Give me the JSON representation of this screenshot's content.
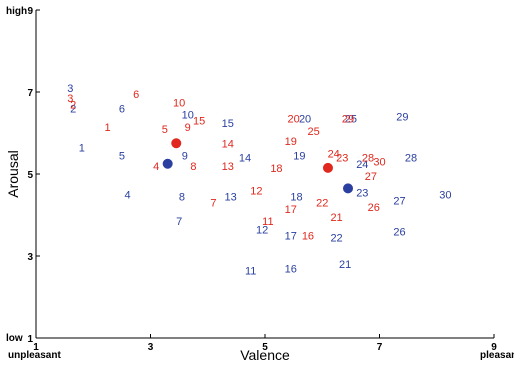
{
  "chart_data": {
    "type": "scatter",
    "xlabel": "Valence",
    "ylabel": "Arousal",
    "xlim": [
      1,
      9
    ],
    "ylim": [
      1,
      9
    ],
    "x_ticks": [
      1,
      3,
      5,
      7,
      9
    ],
    "y_ticks": [
      1,
      3,
      5,
      7,
      9
    ],
    "x_end_labels": {
      "low": "unpleasant",
      "high": "pleasant"
    },
    "y_end_labels": {
      "low": "low",
      "high": "high"
    },
    "grid": false,
    "colors": {
      "blue": "#2a3fa0",
      "red": "#e0281e",
      "axis": "#000000"
    },
    "series": [
      {
        "color": "blue",
        "points": [
          {
            "label": "1",
            "x": 1.8,
            "y": 5.65
          },
          {
            "label": "2",
            "x": 1.65,
            "y": 6.6
          },
          {
            "label": "3",
            "x": 1.6,
            "y": 7.1
          },
          {
            "label": "4",
            "x": 2.6,
            "y": 4.5
          },
          {
            "label": "5",
            "x": 2.5,
            "y": 5.45
          },
          {
            "label": "6",
            "x": 2.5,
            "y": 6.6
          },
          {
            "label": "7",
            "x": 3.5,
            "y": 3.85
          },
          {
            "label": "8",
            "x": 3.55,
            "y": 4.45
          },
          {
            "label": "9",
            "x": 3.6,
            "y": 5.45
          },
          {
            "label": "10",
            "x": 3.65,
            "y": 6.45
          },
          {
            "label": "11",
            "x": 4.75,
            "y": 2.65
          },
          {
            "label": "12",
            "x": 4.95,
            "y": 3.65
          },
          {
            "label": "13",
            "x": 4.4,
            "y": 4.45
          },
          {
            "label": "14",
            "x": 4.65,
            "y": 5.4
          },
          {
            "label": "15",
            "x": 4.35,
            "y": 6.25
          },
          {
            "label": "16",
            "x": 5.45,
            "y": 2.7
          },
          {
            "label": "17",
            "x": 5.45,
            "y": 3.5
          },
          {
            "label": "18",
            "x": 5.55,
            "y": 4.45
          },
          {
            "label": "19",
            "x": 5.6,
            "y": 5.45
          },
          {
            "label": "20",
            "x": 5.7,
            "y": 6.35
          },
          {
            "label": "21",
            "x": 6.4,
            "y": 2.8
          },
          {
            "label": "22",
            "x": 6.25,
            "y": 3.45
          },
          {
            "label": "23",
            "x": 6.7,
            "y": 4.55
          },
          {
            "label": "24",
            "x": 6.7,
            "y": 5.25
          },
          {
            "label": "25",
            "x": 6.5,
            "y": 6.35
          },
          {
            "label": "26",
            "x": 7.35,
            "y": 3.6
          },
          {
            "label": "27",
            "x": 7.35,
            "y": 4.35
          },
          {
            "label": "28",
            "x": 7.55,
            "y": 5.4
          },
          {
            "label": "29",
            "x": 7.4,
            "y": 6.4
          },
          {
            "label": "30",
            "x": 8.15,
            "y": 4.5
          }
        ]
      },
      {
        "color": "red",
        "points": [
          {
            "label": "1",
            "x": 2.25,
            "y": 6.15
          },
          {
            "label": "2",
            "x": 1.65,
            "y": 6.7
          },
          {
            "label": "3",
            "x": 1.6,
            "y": 6.85
          },
          {
            "label": "4",
            "x": 3.1,
            "y": 5.2
          },
          {
            "label": "5",
            "x": 3.25,
            "y": 6.1
          },
          {
            "label": "6",
            "x": 2.75,
            "y": 6.95
          },
          {
            "label": "7",
            "x": 4.1,
            "y": 4.3
          },
          {
            "label": "8",
            "x": 3.75,
            "y": 5.2
          },
          {
            "label": "9",
            "x": 3.65,
            "y": 6.15
          },
          {
            "label": "10",
            "x": 3.5,
            "y": 6.75
          },
          {
            "label": "11",
            "x": 5.05,
            "y": 3.85
          },
          {
            "label": "12",
            "x": 4.85,
            "y": 4.6
          },
          {
            "label": "13",
            "x": 4.35,
            "y": 5.2
          },
          {
            "label": "14",
            "x": 4.35,
            "y": 5.75
          },
          {
            "label": "15",
            "x": 3.85,
            "y": 6.3
          },
          {
            "label": "16",
            "x": 5.75,
            "y": 3.5
          },
          {
            "label": "17",
            "x": 5.45,
            "y": 4.15
          },
          {
            "label": "18",
            "x": 5.2,
            "y": 5.15
          },
          {
            "label": "19",
            "x": 5.45,
            "y": 5.8
          },
          {
            "label": "20",
            "x": 5.5,
            "y": 6.35
          },
          {
            "label": "21",
            "x": 6.25,
            "y": 3.95
          },
          {
            "label": "22",
            "x": 6.0,
            "y": 4.3
          },
          {
            "label": "23",
            "x": 6.35,
            "y": 5.4
          },
          {
            "label": "24",
            "x": 6.2,
            "y": 5.5
          },
          {
            "label": "25",
            "x": 5.85,
            "y": 6.05
          },
          {
            "label": "26",
            "x": 6.9,
            "y": 4.2
          },
          {
            "label": "27",
            "x": 6.85,
            "y": 4.95
          },
          {
            "label": "28",
            "x": 6.8,
            "y": 5.4
          },
          {
            "label": "29",
            "x": 6.45,
            "y": 6.35
          },
          {
            "label": "30",
            "x": 7.0,
            "y": 5.3
          }
        ]
      }
    ],
    "centroids": [
      {
        "color": "blue",
        "x": 3.3,
        "y": 5.25
      },
      {
        "color": "blue",
        "x": 6.45,
        "y": 4.65
      },
      {
        "color": "red",
        "x": 3.45,
        "y": 5.75
      },
      {
        "color": "red",
        "x": 6.1,
        "y": 5.15
      }
    ]
  }
}
